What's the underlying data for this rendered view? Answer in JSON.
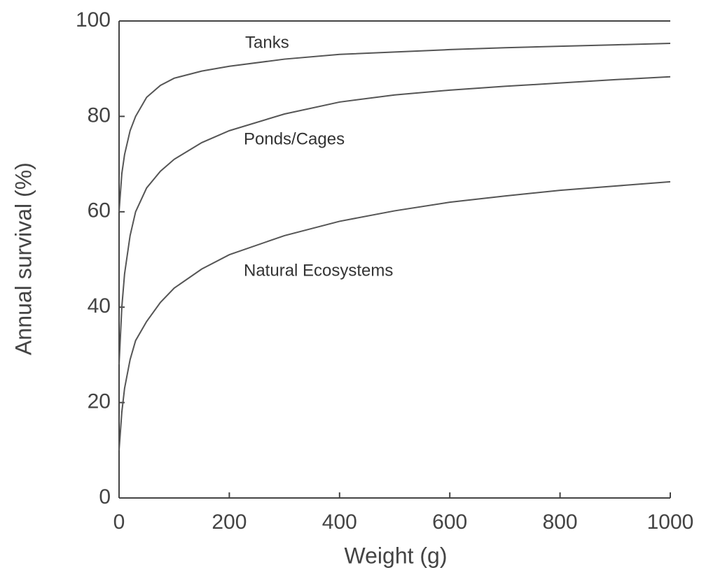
{
  "chart_data": {
    "type": "line",
    "xlabel": "Weight (g)",
    "ylabel": "Annual survival (%)",
    "x": [
      0,
      5,
      10,
      20,
      30,
      50,
      75,
      100,
      150,
      200,
      300,
      400,
      500,
      600,
      700,
      800,
      900,
      1000
    ],
    "series": [
      {
        "name": "Tanks",
        "color": "#555555",
        "values": [
          60,
          68,
          72,
          77,
          80,
          84,
          86.5,
          88,
          89.5,
          90.5,
          92,
          93,
          93.5,
          94,
          94.4,
          94.7,
          95,
          95.3
        ]
      },
      {
        "name": "Ponds/Cages",
        "color": "#555555",
        "values": [
          28,
          40,
          47,
          55,
          60,
          65,
          68.5,
          71,
          74.5,
          77,
          80.5,
          83,
          84.5,
          85.5,
          86.3,
          87,
          87.7,
          88.3
        ]
      },
      {
        "name": "Natural Ecosystems",
        "color": "#555555",
        "values": [
          10,
          18,
          23,
          29,
          33,
          37,
          41,
          44,
          48,
          51,
          55,
          58,
          60.2,
          62,
          63.3,
          64.5,
          65.4,
          66.3
        ]
      }
    ],
    "xlim": [
      0,
      1000
    ],
    "xticks": [
      0,
      200,
      400,
      600,
      800,
      1000
    ],
    "ylim": [
      0,
      100
    ],
    "yticks": [
      0,
      20,
      40,
      60,
      80,
      100
    ],
    "grid": false
  }
}
